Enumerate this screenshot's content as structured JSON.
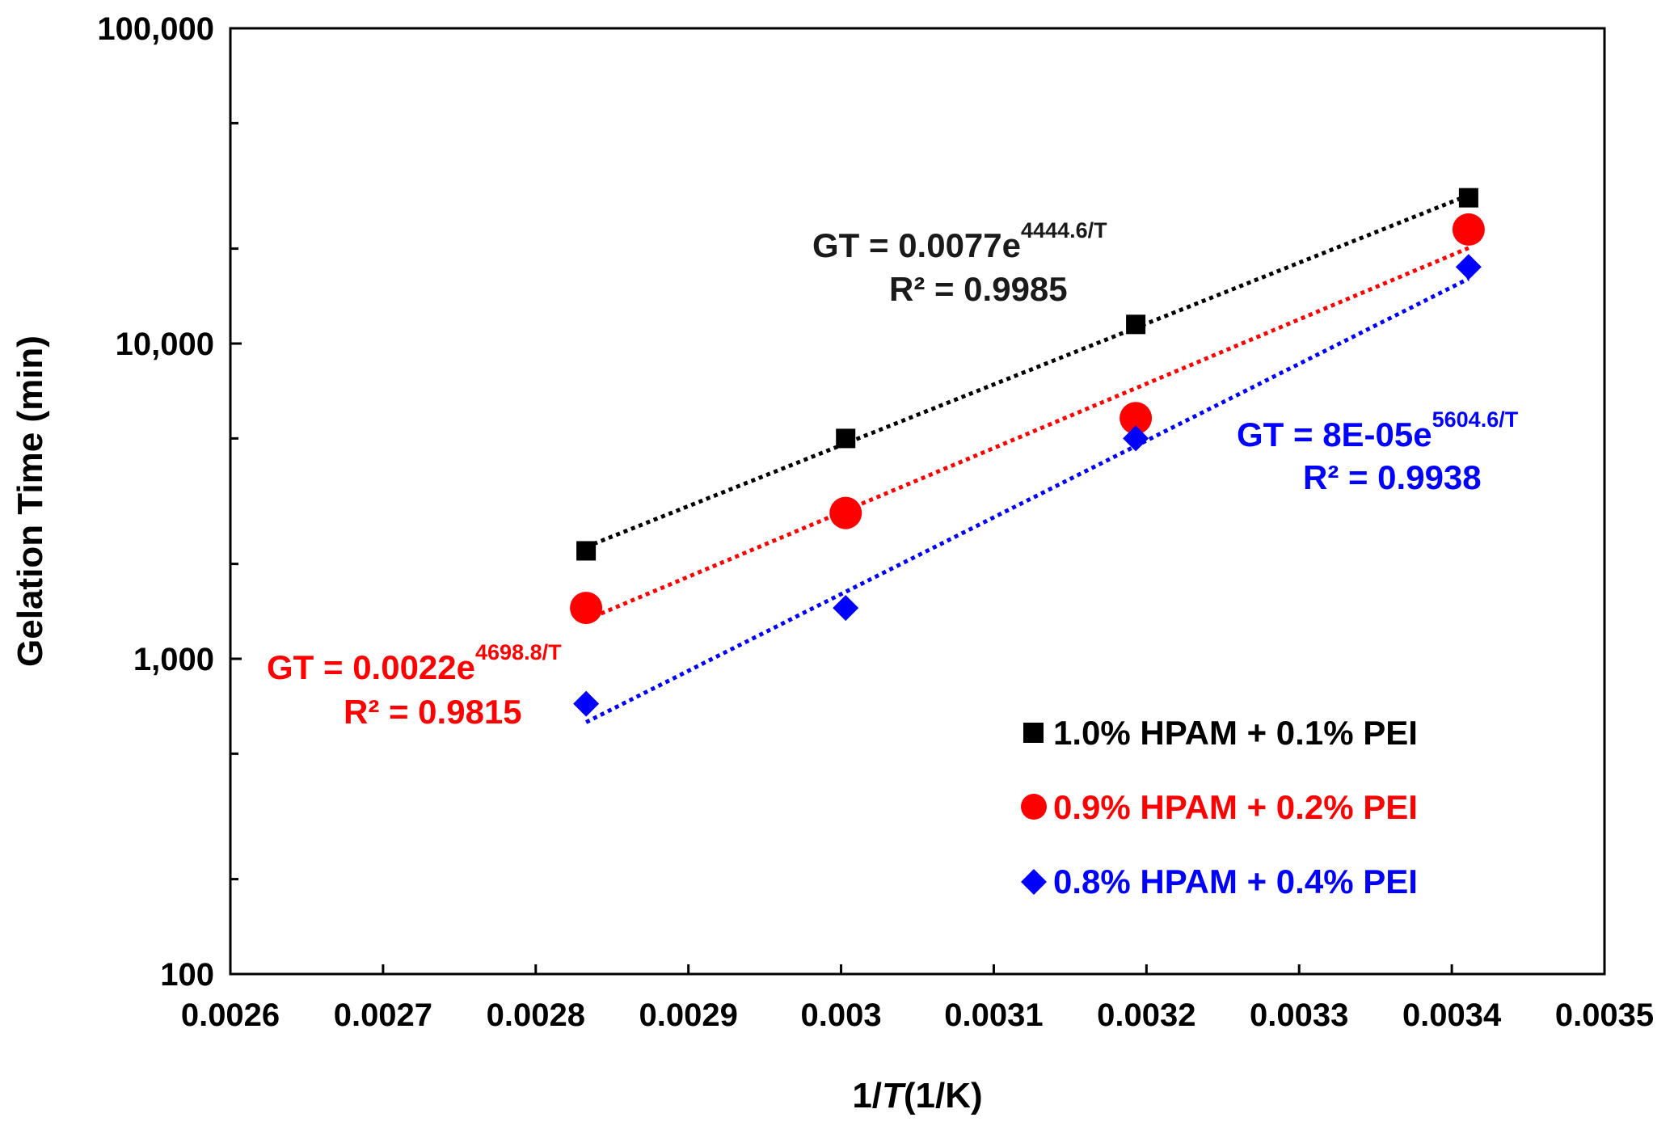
{
  "chart_data": {
    "type": "scatter",
    "y_scale": "log",
    "xlabel_prefix": "1/",
    "xlabel_var": "T",
    "xlabel_suffix": "(1/K)",
    "ylabel": "Gelation Time (min)",
    "xlim": [
      0.0026,
      0.0035
    ],
    "ylim": [
      100,
      100000
    ],
    "x_ticks": [
      0.0026,
      0.0027,
      0.0028,
      0.0029,
      0.003,
      0.0031,
      0.0032,
      0.0033,
      0.0034,
      0.0035
    ],
    "x_tick_labels": [
      "0.0026",
      "0.0027",
      "0.0028",
      "0.0029",
      "0.003",
      "0.0031",
      "0.0032",
      "0.0033",
      "0.0034",
      "0.0035"
    ],
    "y_ticks": [
      100,
      1000,
      10000,
      100000
    ],
    "y_tick_labels": [
      "100",
      "1,000",
      "10,000",
      "100,000"
    ],
    "legend_position": "bottom-right",
    "series": [
      {
        "name": "1.0% HPAM + 0.1% PEI",
        "color": "#000000",
        "marker": "square",
        "x": [
          0.002833,
          0.003003,
          0.003193,
          0.003411
        ],
        "y": [
          2200,
          5000,
          11500,
          29000
        ],
        "fit": {
          "a": 0.0077,
          "b": 4444.6,
          "r2": "0.9985"
        },
        "eq_prefix": "GT = 0.0077e",
        "eq_exponent": "4444.6/T",
        "r2_label": "R² = 0.9985"
      },
      {
        "name": "0.9% HPAM + 0.2% PEI",
        "color": "#ff0000",
        "marker": "circle",
        "x": [
          0.002833,
          0.003003,
          0.003193,
          0.003411
        ],
        "y": [
          1450,
          2900,
          5800,
          23000
        ],
        "fit": {
          "a": 0.0022,
          "b": 4698.8,
          "r2": "0.9815"
        },
        "eq_prefix": "GT = 0.0022e",
        "eq_exponent": "4698.8/T",
        "r2_label": "R² = 0.9815"
      },
      {
        "name": "0.8% HPAM + 0.4% PEI",
        "color": "#0000ff",
        "marker": "diamond",
        "x": [
          0.002833,
          0.003003,
          0.003193,
          0.003411
        ],
        "y": [
          720,
          1450,
          5000,
          17500
        ],
        "fit": {
          "a": 8e-05,
          "b": 5604.6,
          "r2": "0.9938"
        },
        "eq_prefix": "GT = 8E-05e",
        "eq_exponent": "5604.6/T",
        "r2_label": "R² = 0.9938"
      }
    ]
  }
}
